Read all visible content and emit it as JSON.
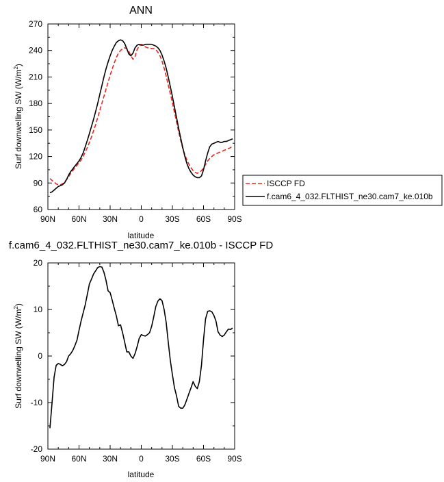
{
  "chart_data": [
    {
      "type": "line",
      "title": "ANN",
      "xlabel": "latitude",
      "ylabel_prefix": "Surf downwelling SW (W/m",
      "ylabel_sup": "2",
      "ylabel_suffix": ")",
      "xlim": [
        90,
        -90
      ],
      "ylim": [
        60,
        270
      ],
      "xticks": [
        {
          "value": 90,
          "label": "90N"
        },
        {
          "value": 60,
          "label": "60N"
        },
        {
          "value": 30,
          "label": "30N"
        },
        {
          "value": 0,
          "label": "0"
        },
        {
          "value": -30,
          "label": "30S"
        },
        {
          "value": -60,
          "label": "60S"
        },
        {
          "value": -90,
          "label": "90S"
        }
      ],
      "yticks": [
        60,
        90,
        120,
        150,
        180,
        210,
        240,
        270
      ],
      "legend_placement": "right",
      "series": [
        {
          "name": "ISCCP FD",
          "color": "#e8281e",
          "dash": "dashed",
          "x": [
            88,
            85,
            82,
            80,
            78,
            76,
            74,
            72,
            70,
            68,
            66,
            64,
            62,
            60,
            58,
            56,
            54,
            52,
            50,
            48,
            46,
            44,
            42,
            40,
            38,
            36,
            34,
            32,
            30,
            28,
            26,
            24,
            22,
            20,
            18,
            16,
            14,
            12,
            10,
            8,
            6,
            4,
            2,
            0,
            -2,
            -4,
            -6,
            -8,
            -10,
            -12,
            -14,
            -16,
            -18,
            -20,
            -22,
            -24,
            -26,
            -28,
            -30,
            -32,
            -34,
            -36,
            -38,
            -40,
            -42,
            -44,
            -46,
            -48,
            -50,
            -52,
            -54,
            -56,
            -58,
            -60,
            -62,
            -64,
            -66,
            -68,
            -70,
            -72,
            -74,
            -76,
            -78,
            -80,
            -82,
            -84,
            -86,
            -88
          ],
          "values": [
            95,
            92,
            89,
            88,
            88,
            89,
            91,
            94,
            97,
            101,
            104,
            107,
            110,
            113,
            116,
            120,
            125,
            130,
            136,
            142,
            149,
            156,
            164,
            172,
            180,
            188,
            196,
            204,
            212,
            219,
            226,
            232,
            237,
            240,
            242,
            243,
            242,
            239,
            234,
            230,
            233,
            241,
            245,
            247,
            246,
            244,
            243,
            243,
            242,
            242,
            241,
            238,
            234,
            228,
            220,
            211,
            201,
            191,
            181,
            170,
            159,
            148,
            138,
            129,
            122,
            116,
            111,
            107,
            104,
            102,
            101,
            102,
            104,
            107,
            111,
            115,
            118,
            120,
            122,
            123,
            124,
            125,
            126,
            127,
            128,
            129,
            130,
            132
          ]
        },
        {
          "name": "f.cam6_4_032.FLTHIST_ne30.cam7_ke.010b",
          "color": "#000000",
          "dash": "solid",
          "x": [
            88,
            86,
            84,
            82,
            80,
            78,
            76,
            74,
            72,
            70,
            68,
            66,
            64,
            62,
            60,
            58,
            56,
            54,
            52,
            50,
            48,
            46,
            44,
            42,
            40,
            38,
            36,
            34,
            32,
            30,
            28,
            26,
            24,
            22,
            20,
            18,
            16,
            14,
            12,
            10,
            8,
            6,
            4,
            2,
            0,
            -2,
            -4,
            -6,
            -8,
            -10,
            -12,
            -14,
            -16,
            -18,
            -20,
            -22,
            -24,
            -26,
            -28,
            -30,
            -32,
            -34,
            -36,
            -38,
            -40,
            -42,
            -44,
            -46,
            -48,
            -50,
            -52,
            -54,
            -56,
            -58,
            -60,
            -62,
            -64,
            -66,
            -68,
            -70,
            -72,
            -74,
            -76,
            -78,
            -80,
            -82,
            -84,
            -86,
            -88
          ],
          "values": [
            79,
            80,
            82,
            84,
            86,
            87,
            88,
            90,
            94,
            99,
            103,
            106,
            109,
            112,
            115,
            119,
            124,
            131,
            138,
            146,
            154,
            162,
            171,
            180,
            190,
            200,
            210,
            219,
            227,
            234,
            240,
            245,
            249,
            251,
            252,
            251,
            248,
            242,
            236,
            234,
            237,
            243,
            246,
            247,
            246,
            246,
            247,
            247,
            247,
            247,
            246,
            245,
            243,
            240,
            235,
            228,
            220,
            210,
            199,
            188,
            176,
            164,
            152,
            141,
            130,
            120,
            112,
            106,
            102,
            99,
            97,
            96,
            96,
            98,
            105,
            115,
            124,
            131,
            134,
            135,
            136,
            137,
            136,
            136,
            137,
            137,
            138,
            139,
            140
          ]
        }
      ]
    },
    {
      "type": "line",
      "title": "f.cam6_4_032.FLTHIST_ne30.cam7_ke.010b - ISCCP FD",
      "xlabel": "latitude",
      "ylabel_prefix": "Surf downwelling SW (W/m",
      "ylabel_sup": "2",
      "ylabel_suffix": ")",
      "xlim": [
        90,
        -90
      ],
      "ylim": [
        -20,
        20
      ],
      "xticks": [
        {
          "value": 90,
          "label": "90N"
        },
        {
          "value": 60,
          "label": "60N"
        },
        {
          "value": 30,
          "label": "30N"
        },
        {
          "value": 0,
          "label": "0"
        },
        {
          "value": -30,
          "label": "30S"
        },
        {
          "value": -60,
          "label": "60S"
        },
        {
          "value": -90,
          "label": "90S"
        }
      ],
      "yticks": [
        -20,
        -10,
        0,
        10,
        20
      ],
      "series": [
        {
          "color": "#000000",
          "dash": "solid",
          "x": [
            88,
            86,
            84,
            82,
            80,
            78,
            76,
            74,
            72,
            70,
            68,
            66,
            64,
            62,
            60,
            58,
            56,
            54,
            52,
            50,
            48,
            46,
            44,
            42,
            40,
            38,
            36,
            34,
            32,
            30,
            28,
            26,
            24,
            22,
            20,
            18,
            16,
            14,
            12,
            10,
            8,
            6,
            4,
            2,
            0,
            -2,
            -4,
            -6,
            -8,
            -10,
            -12,
            -14,
            -16,
            -18,
            -20,
            -22,
            -24,
            -26,
            -28,
            -30,
            -32,
            -34,
            -36,
            -38,
            -40,
            -42,
            -44,
            -46,
            -48,
            -50,
            -52,
            -54,
            -56,
            -58,
            -60,
            -62,
            -64,
            -66,
            -68,
            -70,
            -72,
            -74,
            -76,
            -78,
            -80,
            -82,
            -84,
            -86,
            -88
          ],
          "values": [
            -15.5,
            -10.0,
            -4.5,
            -2.0,
            -1.6,
            -1.8,
            -2.1,
            -1.8,
            -1.2,
            0.0,
            0.5,
            1.2,
            2.2,
            3.4,
            5.5,
            7.5,
            9.3,
            11.0,
            13.2,
            15.5,
            16.5,
            17.6,
            18.3,
            19.0,
            19.2,
            19.1,
            18.0,
            16.3,
            14.0,
            13.6,
            12.0,
            10.2,
            8.6,
            6.5,
            6.7,
            5.0,
            3.0,
            0.9,
            0.9,
            0.0,
            -0.5,
            0.5,
            2.0,
            3.8,
            4.6,
            4.4,
            4.3,
            4.6,
            5.0,
            6.4,
            8.4,
            10.6,
            11.8,
            12.3,
            11.9,
            10.0,
            7.2,
            3.0,
            -1.0,
            -4.0,
            -6.8,
            -8.6,
            -10.8,
            -11.2,
            -11.2,
            -10.5,
            -9.3,
            -8.0,
            -6.8,
            -5.5,
            -6.5,
            -7.0,
            -5.5,
            -2.0,
            3.5,
            8.0,
            9.6,
            9.7,
            9.5,
            8.7,
            7.5,
            5.2,
            4.5,
            4.2,
            4.5,
            5.2,
            5.8,
            5.7,
            6.0
          ]
        }
      ]
    }
  ]
}
